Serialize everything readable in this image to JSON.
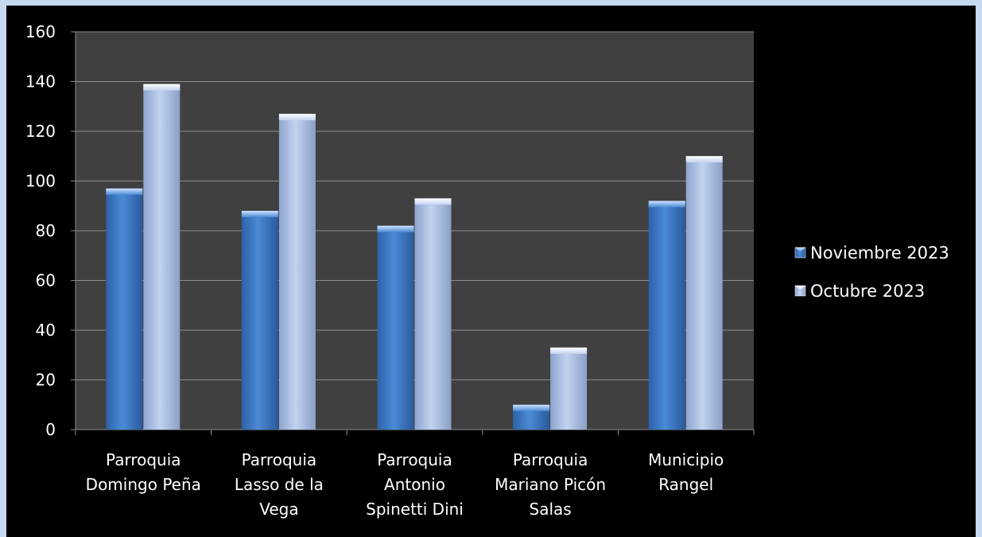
{
  "chart_data": {
    "type": "bar",
    "categories": [
      [
        "Parroquia",
        "Domingo Peña"
      ],
      [
        "Parroquia",
        "Lasso de la",
        "Vega"
      ],
      [
        "Parroquia",
        "Antonio",
        "Spinetti Dini"
      ],
      [
        "Parroquia",
        "Mariano Picón",
        "Salas"
      ],
      [
        "Municipio",
        "Rangel"
      ]
    ],
    "series": [
      {
        "name": "Noviembre 2023",
        "values": [
          97,
          88,
          82,
          10,
          92
        ],
        "color": "#3a78c8"
      },
      {
        "name": "Octubre 2023",
        "values": [
          139,
          127,
          93,
          33,
          110
        ],
        "color": "#b3c6e8"
      }
    ],
    "ylim": [
      0,
      160
    ],
    "yticks": [
      0,
      20,
      40,
      60,
      80,
      100,
      120,
      140,
      160
    ],
    "grid": true,
    "legend_position": "right",
    "plot_background": "#404040",
    "page_background": "#000000",
    "frame_color": "#c6d9f1"
  }
}
